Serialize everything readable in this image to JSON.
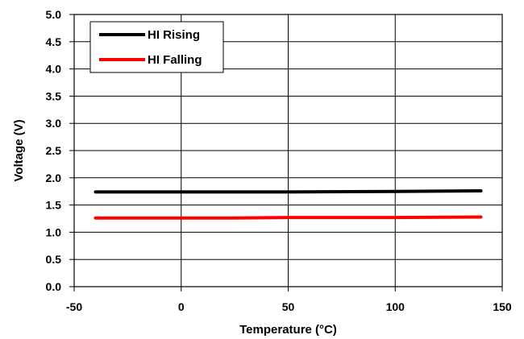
{
  "chart_data": {
    "type": "line",
    "title": "",
    "xlabel": "Temperature (°C)",
    "ylabel": "Voltage (V)",
    "xlim": [
      -50,
      150
    ],
    "ylim": [
      0.0,
      5.0
    ],
    "x_ticks": [
      "-50",
      "0",
      "50",
      "100",
      "150"
    ],
    "y_ticks": [
      "0.0",
      "0.5",
      "1.0",
      "1.5",
      "2.0",
      "2.5",
      "3.0",
      "3.5",
      "4.0",
      "4.5",
      "5.0"
    ],
    "grid": true,
    "legend_position": "top-left",
    "series": [
      {
        "name": "HI Rising",
        "color": "#000000",
        "x": [
          -40,
          0,
          25,
          50,
          100,
          140
        ],
        "y": [
          1.74,
          1.74,
          1.74,
          1.74,
          1.75,
          1.76
        ]
      },
      {
        "name": "HI Falling",
        "color": "#ff0000",
        "x": [
          -40,
          0,
          25,
          50,
          100,
          140
        ],
        "y": [
          1.26,
          1.26,
          1.26,
          1.27,
          1.27,
          1.28
        ]
      }
    ]
  }
}
